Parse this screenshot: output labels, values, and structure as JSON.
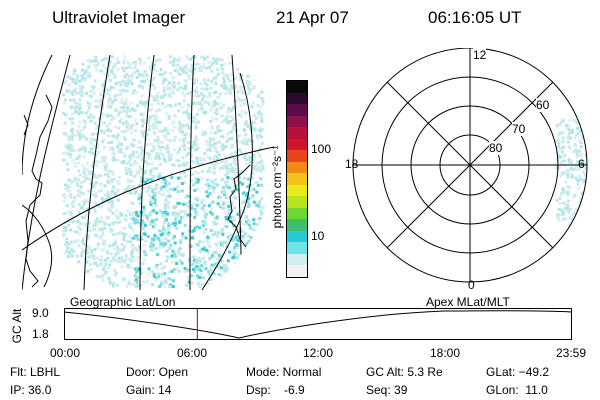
{
  "header": {
    "title": "Ultraviolet Imager",
    "date": "21 Apr 07",
    "time": "06:16:05 UT"
  },
  "colorbar": {
    "unit_label": "photon cm⁻²s⁻¹",
    "tick_100": "100",
    "tick_10": "10",
    "colors": [
      "#f2f2f2",
      "#cfeff0",
      "#6fe3e3",
      "#29c8d8",
      "#3fbf6a",
      "#6cd833",
      "#b8e41e",
      "#e8e81a",
      "#f5c21c",
      "#f28a14",
      "#e6461a",
      "#d0142a",
      "#b8103a",
      "#8e0f4a",
      "#5a0d4a",
      "#2a0a30",
      "#0a0a0a"
    ]
  },
  "left_map": {
    "label": "Geographic Lat/Lon"
  },
  "polar_plot": {
    "label": "Apex  MLat/MLT",
    "mlt_top": "12",
    "mlt_left": "18",
    "mlt_right": "6",
    "mlt_bottom": "0",
    "lat_60": "60",
    "lat_70": "70",
    "lat_80": "80"
  },
  "timeline": {
    "ylabel": "GC Alt",
    "y_top": "9.0",
    "y_bottom": "1.8",
    "current_time_fraction": 0.262,
    "ticks": [
      "00:00",
      "06:00",
      "12:00",
      "18:00",
      "23:59"
    ]
  },
  "info": {
    "flt": "Flt: LBHL",
    "ip": "IP: 36.0",
    "door": "Door: Open",
    "gain": "Gain: 14",
    "mode": "Mode: Normal",
    "dsp": "Dsp:    -6.9",
    "gc_alt": "GC Alt: 5.3 Re",
    "seq": "Seq: 39",
    "glat": "GLat: −49.2",
    "glon": "GLon:  11.0"
  }
}
